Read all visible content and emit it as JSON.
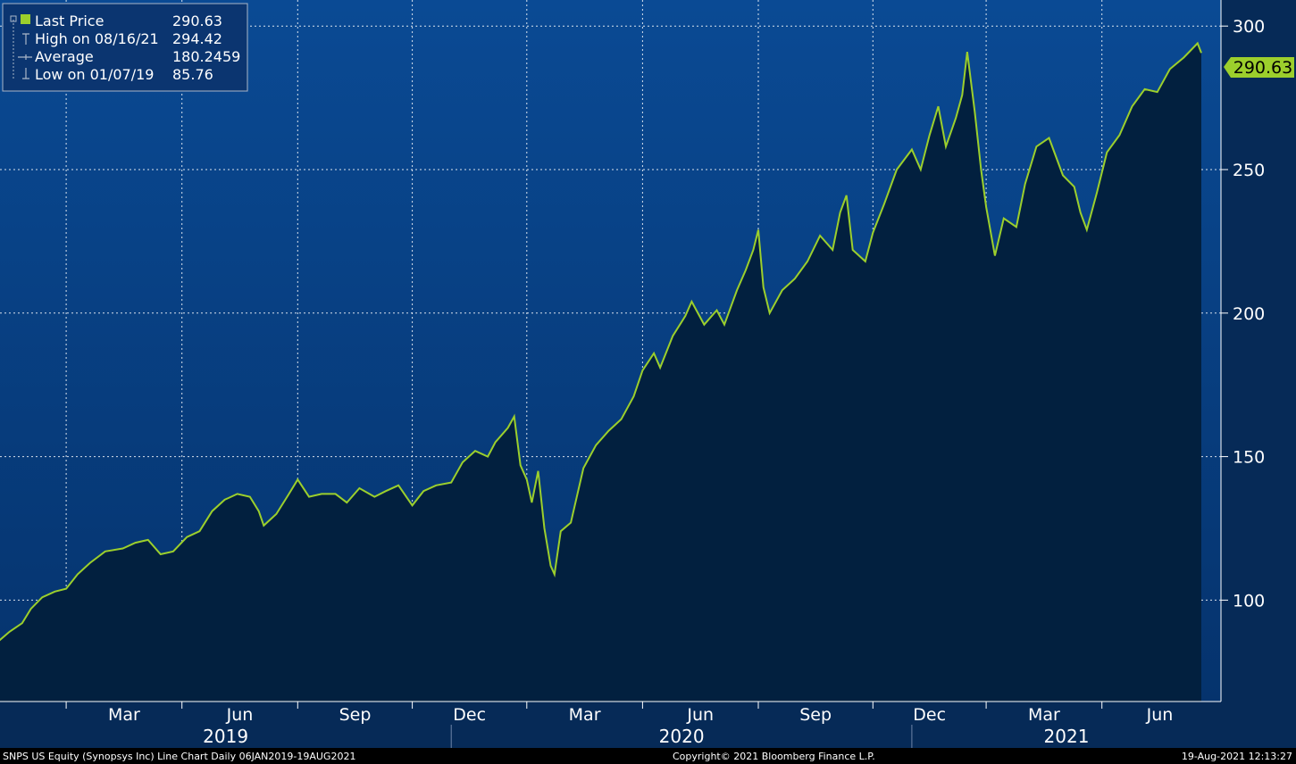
{
  "colors": {
    "plot_top": "#0a4a94",
    "plot_bottom": "#05336d",
    "area_fill": "#02203f",
    "line": "#9ccf2c",
    "grid": "#ffffff",
    "axis_bg": "#062a57",
    "price_tag_bg": "#9ccf2c",
    "price_tag_text": "#000000"
  },
  "legend": {
    "items": [
      {
        "label": "Last Price",
        "value": "290.63",
        "marker": "square-icon"
      },
      {
        "label": "High on 08/16/21",
        "value": "294.42",
        "marker": "high-marker-icon"
      },
      {
        "label": "Average",
        "value": "180.2459",
        "marker": "average-marker-icon"
      },
      {
        "label": "Low on 01/07/19",
        "value": "85.76",
        "marker": "low-marker-icon"
      }
    ]
  },
  "price_tag": "290.63",
  "footer": {
    "left": "SNPS US Equity (Synopsys Inc) Line Chart  Daily 06JAN2019-19AUG2021",
    "center": "Copyright© 2021 Bloomberg Finance L.P.",
    "right": "19-Aug-2021 12:13:27"
  },
  "chart_data": {
    "type": "area",
    "ylim": [
      65,
      310
    ],
    "yticks": [
      100,
      150,
      200,
      250,
      300
    ],
    "x_start": "2019-01-06",
    "x_end": "2021-08-19",
    "grid": true,
    "legend_position": "top-left",
    "month_ticks": [
      {
        "label": "Mar",
        "date": "2019-03-01"
      },
      {
        "label": "Jun",
        "date": "2019-06-01"
      },
      {
        "label": "Sep",
        "date": "2019-09-01"
      },
      {
        "label": "Dec",
        "date": "2019-12-01"
      },
      {
        "label": "Mar",
        "date": "2020-03-01"
      },
      {
        "label": "Jun",
        "date": "2020-06-01"
      },
      {
        "label": "Sep",
        "date": "2020-09-01"
      },
      {
        "label": "Dec",
        "date": "2020-12-01"
      },
      {
        "label": "Mar",
        "date": "2021-03-01"
      },
      {
        "label": "Jun",
        "date": "2021-06-01"
      }
    ],
    "years": [
      "2019",
      "2020",
      "2021"
    ],
    "series": [
      {
        "name": "Last Price",
        "points": [
          [
            "2019-01-07",
            86
          ],
          [
            "2019-01-15",
            89
          ],
          [
            "2019-01-25",
            92
          ],
          [
            "2019-02-01",
            97
          ],
          [
            "2019-02-10",
            101
          ],
          [
            "2019-02-20",
            103
          ],
          [
            "2019-03-01",
            104
          ],
          [
            "2019-03-10",
            109
          ],
          [
            "2019-03-20",
            113
          ],
          [
            "2019-04-01",
            117
          ],
          [
            "2019-04-15",
            118
          ],
          [
            "2019-04-25",
            120
          ],
          [
            "2019-05-05",
            121
          ],
          [
            "2019-05-15",
            116
          ],
          [
            "2019-05-25",
            117
          ],
          [
            "2019-06-05",
            122
          ],
          [
            "2019-06-15",
            124
          ],
          [
            "2019-06-25",
            131
          ],
          [
            "2019-07-05",
            135
          ],
          [
            "2019-07-15",
            137
          ],
          [
            "2019-07-25",
            136
          ],
          [
            "2019-08-01",
            131
          ],
          [
            "2019-08-05",
            126
          ],
          [
            "2019-08-15",
            130
          ],
          [
            "2019-08-25",
            137
          ],
          [
            "2019-09-01",
            142
          ],
          [
            "2019-09-10",
            136
          ],
          [
            "2019-09-20",
            137
          ],
          [
            "2019-10-01",
            137
          ],
          [
            "2019-10-10",
            134
          ],
          [
            "2019-10-20",
            139
          ],
          [
            "2019-11-01",
            136
          ],
          [
            "2019-11-10",
            138
          ],
          [
            "2019-11-20",
            140
          ],
          [
            "2019-12-01",
            133
          ],
          [
            "2019-12-10",
            138
          ],
          [
            "2019-12-20",
            140
          ],
          [
            "2020-01-01",
            141
          ],
          [
            "2020-01-10",
            148
          ],
          [
            "2020-01-20",
            152
          ],
          [
            "2020-01-30",
            150
          ],
          [
            "2020-02-05",
            155
          ],
          [
            "2020-02-15",
            160
          ],
          [
            "2020-02-20",
            164
          ],
          [
            "2020-02-25",
            147
          ],
          [
            "2020-03-01",
            142
          ],
          [
            "2020-03-05",
            134
          ],
          [
            "2020-03-10",
            145
          ],
          [
            "2020-03-15",
            125
          ],
          [
            "2020-03-20",
            112
          ],
          [
            "2020-03-23",
            109
          ],
          [
            "2020-03-28",
            124
          ],
          [
            "2020-04-05",
            127
          ],
          [
            "2020-04-15",
            146
          ],
          [
            "2020-04-25",
            154
          ],
          [
            "2020-05-05",
            159
          ],
          [
            "2020-05-15",
            163
          ],
          [
            "2020-05-25",
            171
          ],
          [
            "2020-06-01",
            180
          ],
          [
            "2020-06-10",
            186
          ],
          [
            "2020-06-15",
            181
          ],
          [
            "2020-06-25",
            192
          ],
          [
            "2020-07-05",
            199
          ],
          [
            "2020-07-10",
            204
          ],
          [
            "2020-07-20",
            196
          ],
          [
            "2020-07-30",
            201
          ],
          [
            "2020-08-05",
            196
          ],
          [
            "2020-08-15",
            208
          ],
          [
            "2020-08-22",
            215
          ],
          [
            "2020-08-28",
            222
          ],
          [
            "2020-09-01",
            229
          ],
          [
            "2020-09-05",
            209
          ],
          [
            "2020-09-10",
            200
          ],
          [
            "2020-09-20",
            208
          ],
          [
            "2020-09-30",
            212
          ],
          [
            "2020-10-10",
            218
          ],
          [
            "2020-10-20",
            227
          ],
          [
            "2020-10-30",
            222
          ],
          [
            "2020-11-05",
            235
          ],
          [
            "2020-11-10",
            241
          ],
          [
            "2020-11-15",
            222
          ],
          [
            "2020-11-25",
            218
          ],
          [
            "2020-12-01",
            228
          ],
          [
            "2020-12-10",
            238
          ],
          [
            "2020-12-20",
            250
          ],
          [
            "2021-01-01",
            257
          ],
          [
            "2021-01-08",
            250
          ],
          [
            "2021-01-15",
            262
          ],
          [
            "2021-01-22",
            272
          ],
          [
            "2021-01-28",
            258
          ],
          [
            "2021-02-05",
            268
          ],
          [
            "2021-02-10",
            276
          ],
          [
            "2021-02-14",
            291
          ],
          [
            "2021-02-20",
            270
          ],
          [
            "2021-02-25",
            250
          ],
          [
            "2021-03-01",
            237
          ],
          [
            "2021-03-08",
            220
          ],
          [
            "2021-03-15",
            233
          ],
          [
            "2021-03-25",
            230
          ],
          [
            "2021-04-01",
            245
          ],
          [
            "2021-04-10",
            258
          ],
          [
            "2021-04-20",
            261
          ],
          [
            "2021-05-01",
            248
          ],
          [
            "2021-05-10",
            244
          ],
          [
            "2021-05-15",
            235
          ],
          [
            "2021-05-20",
            229
          ],
          [
            "2021-05-28",
            242
          ],
          [
            "2021-06-05",
            256
          ],
          [
            "2021-06-15",
            262
          ],
          [
            "2021-06-25",
            272
          ],
          [
            "2021-07-05",
            278
          ],
          [
            "2021-07-15",
            277
          ],
          [
            "2021-07-25",
            285
          ],
          [
            "2021-08-05",
            289
          ],
          [
            "2021-08-16",
            294
          ],
          [
            "2021-08-19",
            290.63
          ]
        ]
      }
    ]
  }
}
